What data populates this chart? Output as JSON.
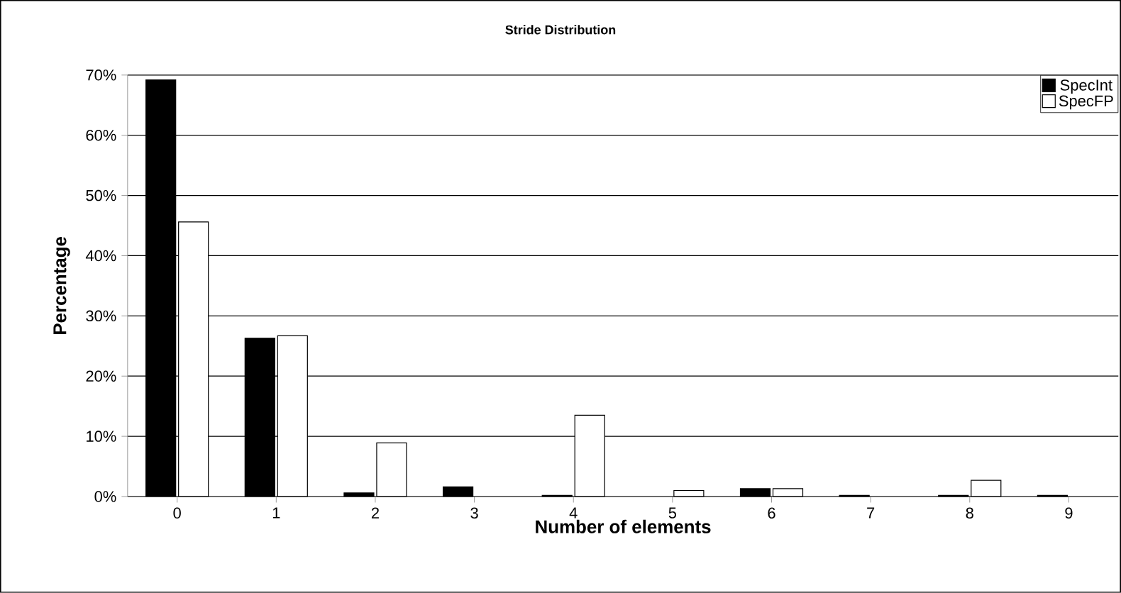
{
  "chart_data": {
    "type": "bar",
    "title": "Stride Distribution",
    "xlabel": "Number of elements",
    "ylabel": "Percentage",
    "categories": [
      "0",
      "1",
      "2",
      "3",
      "4",
      "5",
      "6",
      "7",
      "8",
      "9"
    ],
    "series": [
      {
        "name": "SpecInt",
        "color": "#000000",
        "values": [
          69.2,
          26.3,
          0.6,
          1.6,
          0.2,
          0,
          1.3,
          0.2,
          0.2,
          0.2
        ]
      },
      {
        "name": "SpecFP",
        "color": "#ffffff",
        "values": [
          45.6,
          26.7,
          8.9,
          0,
          13.5,
          1.0,
          1.3,
          0,
          2.7,
          0
        ]
      }
    ],
    "ylim": [
      0,
      70
    ],
    "yticks": [
      {
        "value": 0,
        "label": "0%"
      },
      {
        "value": 10,
        "label": "10%"
      },
      {
        "value": 20,
        "label": "20%"
      },
      {
        "value": 30,
        "label": "30%"
      },
      {
        "value": 40,
        "label": "40%"
      },
      {
        "value": 50,
        "label": "50%"
      },
      {
        "value": 60,
        "label": "60%"
      },
      {
        "value": 70,
        "label": "70%"
      }
    ],
    "grid": "y",
    "legend": "top right"
  }
}
